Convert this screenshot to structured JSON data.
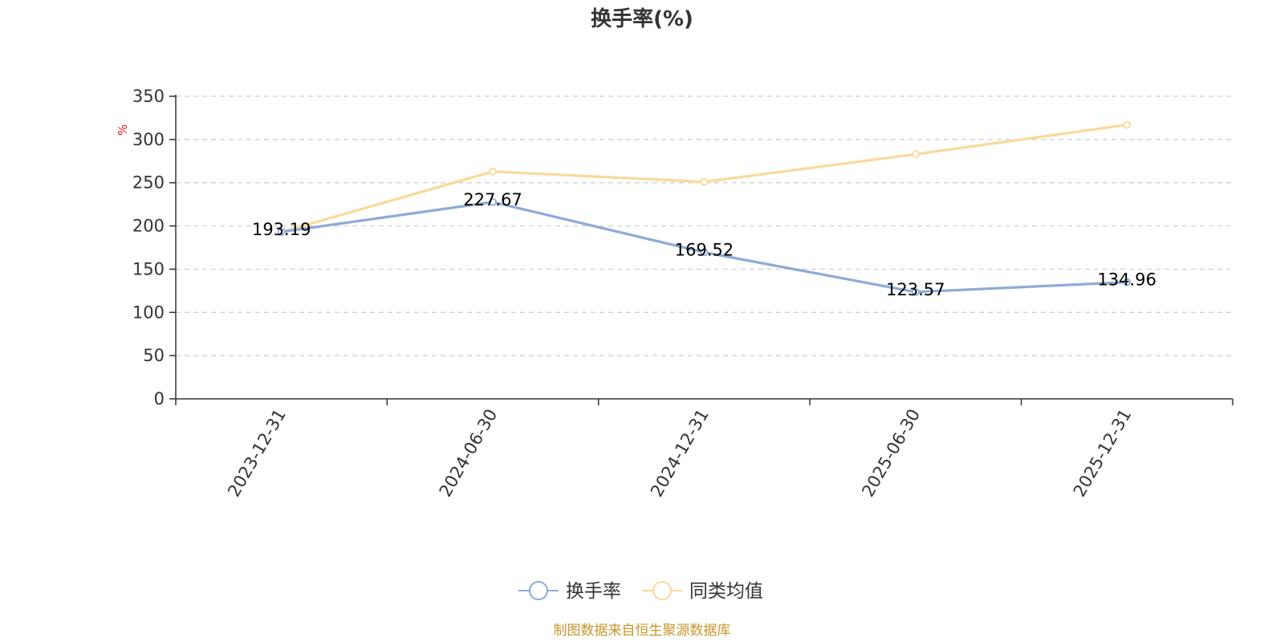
{
  "chart_data": {
    "type": "line",
    "title": "换手率(%)",
    "ylabel": "%",
    "xlabel": "",
    "categories": [
      "2023-12-31",
      "2024-06-30",
      "2024-12-31",
      "2025-06-30",
      "2025-12-31"
    ],
    "ylim": [
      0,
      350
    ],
    "yticks": [
      0,
      50,
      100,
      150,
      200,
      250,
      300,
      350
    ],
    "grid": true,
    "series": [
      {
        "name": "换手率",
        "color": "#8eaad8",
        "values": [
          193.19,
          227.67,
          169.52,
          123.57,
          134.96
        ],
        "labels": [
          "193.19",
          "227.67",
          "169.52",
          "123.57",
          "134.96"
        ]
      },
      {
        "name": "同类均值",
        "color": "#fbd99a",
        "values": [
          193,
          263,
          251,
          283,
          317
        ]
      }
    ],
    "legend_position": "bottom",
    "source": "制图数据来自恒生聚源数据库",
    "unit_color": "#e02020",
    "source_color": "#c8962a"
  }
}
